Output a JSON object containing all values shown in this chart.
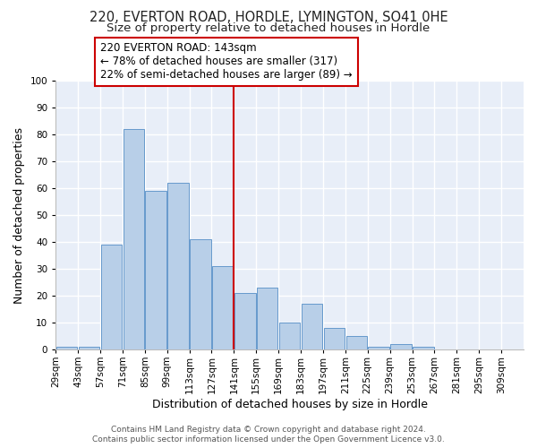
{
  "title1": "220, EVERTON ROAD, HORDLE, LYMINGTON, SO41 0HE",
  "title2": "Size of property relative to detached houses in Hordle",
  "xlabel": "Distribution of detached houses by size in Hordle",
  "ylabel": "Number of detached properties",
  "bin_labels": [
    "29sqm",
    "43sqm",
    "57sqm",
    "71sqm",
    "85sqm",
    "99sqm",
    "113sqm",
    "127sqm",
    "141sqm",
    "155sqm",
    "169sqm",
    "183sqm",
    "197sqm",
    "211sqm",
    "225sqm",
    "239sqm",
    "253sqm",
    "267sqm",
    "281sqm",
    "295sqm",
    "309sqm"
  ],
  "bar_values": [
    1,
    1,
    39,
    82,
    59,
    62,
    41,
    31,
    21,
    23,
    10,
    17,
    8,
    5,
    1,
    2,
    1,
    0,
    0,
    0,
    0
  ],
  "bar_color": "#b8cfe8",
  "bar_edge_color": "#6699cc",
  "bin_edges": [
    29,
    43,
    57,
    71,
    85,
    99,
    113,
    127,
    141,
    155,
    169,
    183,
    197,
    211,
    225,
    239,
    253,
    267,
    281,
    295,
    309,
    323
  ],
  "vline_x": 141,
  "vline_color": "#cc0000",
  "annotation_text": "220 EVERTON ROAD: 143sqm\n← 78% of detached houses are smaller (317)\n22% of semi-detached houses are larger (89) →",
  "annotation_box_color": "#ffffff",
  "annotation_border_color": "#cc0000",
  "ylim": [
    0,
    100
  ],
  "yticks": [
    0,
    10,
    20,
    30,
    40,
    50,
    60,
    70,
    80,
    90,
    100
  ],
  "footnote1": "Contains HM Land Registry data © Crown copyright and database right 2024.",
  "footnote2": "Contains public sector information licensed under the Open Government Licence v3.0.",
  "fig_bg_color": "#ffffff",
  "plot_bg_color": "#e8eef8",
  "grid_color": "#ffffff",
  "title_fontsize": 10.5,
  "subtitle_fontsize": 9.5,
  "axis_label_fontsize": 9,
  "tick_fontsize": 7.5,
  "annotation_fontsize": 8.5,
  "footnote_fontsize": 6.5
}
